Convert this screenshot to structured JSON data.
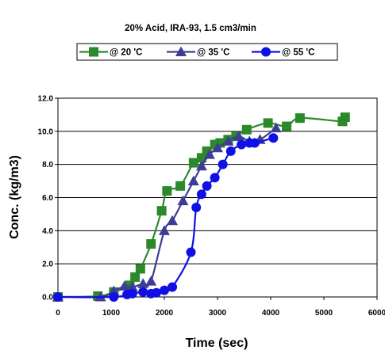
{
  "chart_data": {
    "type": "line",
    "title": "20% Acid, IRA-93, 1.5 cm3/min",
    "xlabel": "Time (sec)",
    "ylabel": "Conc. (kg/m3)",
    "xlim": [
      0,
      6000
    ],
    "ylim": [
      0,
      12
    ],
    "xticks": [
      0,
      1000,
      2000,
      3000,
      4000,
      5000,
      6000
    ],
    "xtick_labels": [
      "0",
      "1000",
      "2000",
      "3000",
      "4000",
      "5000",
      "6000"
    ],
    "yticks": [
      0,
      2,
      4,
      6,
      8,
      10,
      12
    ],
    "ytick_labels": [
      "0.0",
      "2.0",
      "4.0",
      "6.0",
      "8.0",
      "10.0",
      "12.0"
    ],
    "grid": "horizontal",
    "legend_position": "top",
    "series": [
      {
        "name": "@ 20 'C",
        "color": "#2a8a2a",
        "marker": "square",
        "x": [
          0,
          750,
          1050,
          1350,
          1450,
          1550,
          1750,
          1950,
          2050,
          2300,
          2550,
          2700,
          2800,
          2950,
          3050,
          3200,
          3350,
          3550,
          3950,
          4300,
          4550,
          5350,
          5400
        ],
        "y": [
          0.0,
          0.05,
          0.3,
          0.7,
          1.2,
          1.7,
          3.2,
          5.2,
          6.4,
          6.7,
          8.1,
          8.4,
          8.8,
          9.2,
          9.3,
          9.5,
          9.7,
          10.1,
          10.5,
          10.3,
          10.8,
          10.6,
          10.85
        ]
      },
      {
        "name": "@ 35 'C",
        "color": "#3d3d96",
        "marker": "triangle",
        "x": [
          0,
          800,
          1050,
          1250,
          1400,
          1600,
          1750,
          2000,
          2150,
          2350,
          2550,
          2700,
          2850,
          3000,
          3200,
          3400,
          3600,
          3800,
          4100
        ],
        "y": [
          0.0,
          0.0,
          0.35,
          0.65,
          0.6,
          0.8,
          0.95,
          4.0,
          4.6,
          5.8,
          7.0,
          7.9,
          8.6,
          9.0,
          9.4,
          9.7,
          9.4,
          9.5,
          10.2
        ]
      },
      {
        "name": "@ 55 'C",
        "color": "#1010e6",
        "marker": "circle",
        "x": [
          0,
          1050,
          1300,
          1400,
          1600,
          1750,
          1850,
          2000,
          2150,
          2500,
          2600,
          2700,
          2800,
          2950,
          3100,
          3250,
          3450,
          3600,
          3700,
          4050
        ],
        "y": [
          0.0,
          0.0,
          0.15,
          0.2,
          0.3,
          0.2,
          0.25,
          0.4,
          0.6,
          2.7,
          5.4,
          6.2,
          6.7,
          7.2,
          8.0,
          8.8,
          9.2,
          9.3,
          9.3,
          9.6
        ]
      }
    ]
  }
}
